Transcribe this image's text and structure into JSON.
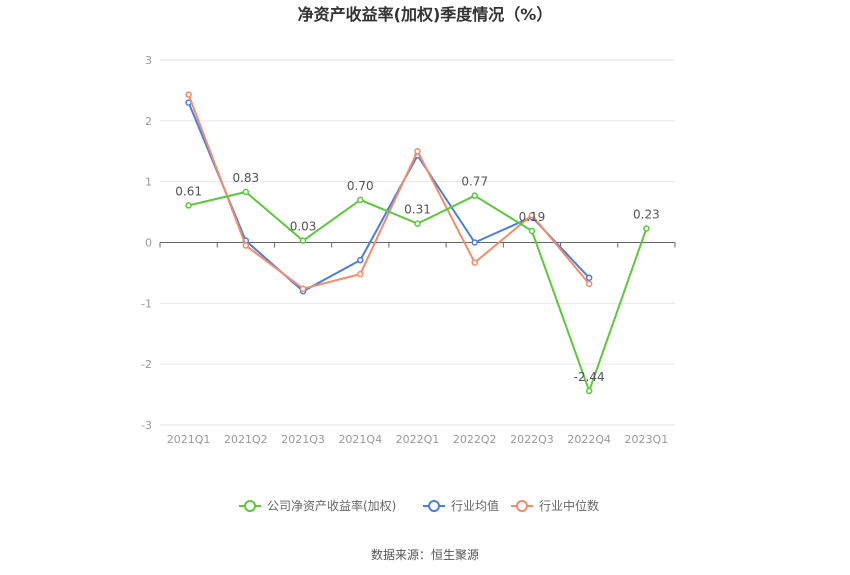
{
  "chart_data": {
    "type": "line",
    "title": "净资产收益率(加权)季度情况（%）",
    "categories": [
      "2021Q1",
      "2021Q2",
      "2021Q3",
      "2021Q4",
      "2022Q1",
      "2022Q2",
      "2022Q3",
      "2022Q4",
      "2023Q1"
    ],
    "ylim": [
      -3,
      3
    ],
    "yticks": [
      3,
      2,
      1,
      0,
      -1,
      -2,
      -3
    ],
    "grid": true,
    "legend_position": "bottom",
    "series": [
      {
        "name": "公司净资产收益率(加权)",
        "color": "#5cc83a",
        "values": [
          0.61,
          0.83,
          0.03,
          0.7,
          0.31,
          0.77,
          0.19,
          -2.44,
          0.23
        ],
        "labels": [
          "0.61",
          "0.83",
          "0.03",
          "0.70",
          "0.31",
          "0.77",
          "0.19",
          "-2.44",
          "0.23"
        ]
      },
      {
        "name": "行业均值",
        "color": "#4a7de0",
        "values": [
          2.3,
          0.03,
          -0.8,
          -0.29,
          1.43,
          0.0,
          0.42,
          -0.58,
          null
        ]
      },
      {
        "name": "行业中位数",
        "color": "#f28c6a",
        "values": [
          2.43,
          -0.05,
          -0.76,
          -0.52,
          1.5,
          -0.33,
          0.45,
          -0.68,
          null
        ]
      }
    ]
  },
  "source": "数据来源：恒生聚源"
}
